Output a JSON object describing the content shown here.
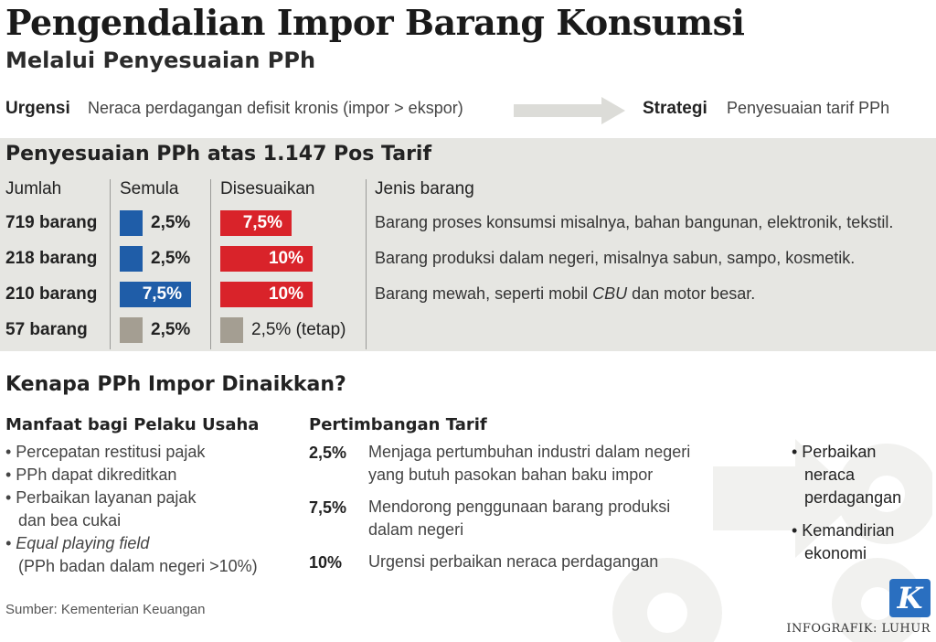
{
  "header": {
    "title": "Pengendalian Impor Barang Konsumsi",
    "subtitle": "Melalui Penyesuaian PPh"
  },
  "context": {
    "urgency_label": "Urgensi",
    "urgency_text": "Neraca perdagangan defisit kronis (impor > ekspor)",
    "strategy_label": "Strategi",
    "strategy_text": "Penyesuaian tarif PPh"
  },
  "tariff_table": {
    "title": "Penyesuaian PPh atas 1.147 Pos Tarif",
    "headers": [
      "Jumlah",
      "Semula",
      "Disesuaikan",
      "Jenis barang"
    ],
    "rows": [
      {
        "count": "719 barang",
        "original": "2,5%",
        "adjusted": "7,5%",
        "desc": "Barang proses konsumsi misalnya, bahan bangunan, elektronik, tekstil."
      },
      {
        "count": "218 barang",
        "original": "2,5%",
        "adjusted": "10%",
        "desc": "Barang produksi dalam negeri, misalnya sabun, sampo, kosmetik."
      },
      {
        "count": "210 barang",
        "original": "7,5%",
        "adjusted": "10%",
        "desc_prefix": "Barang mewah, seperti mobil ",
        "desc_italic": "CBU",
        "desc_suffix": " dan motor besar."
      },
      {
        "count": "57 barang",
        "original": "2,5%",
        "adjusted": "2,5% (tetap)",
        "desc": ""
      }
    ],
    "colors": {
      "blue": "#1f5da8",
      "red": "#d9232a",
      "gray": "#a49e92"
    }
  },
  "why": {
    "title": "Kenapa PPh Impor Dinaikkan?",
    "benefits_header": "Manfaat bagi Pelaku Usaha",
    "benefits": [
      "• Percepatan restitusi pajak",
      "• PPh dapat dikreditkan",
      "• Perbaikan layanan pajak",
      "dan bea cukai",
      "• Equal playing field",
      "(PPh badan dalam negeri >10%)"
    ],
    "considerations_header": "Pertimbangan Tarif",
    "considerations": [
      {
        "rate": "2,5%",
        "line1": "Menjaga pertumbuhan industri dalam negeri",
        "line2": "yang butuh pasokan bahan baku impor"
      },
      {
        "rate": "7,5%",
        "line1": "Mendorong penggunaan barang produksi",
        "line2": "dalam negeri"
      },
      {
        "rate": "10%",
        "line1": "Urgensi perbaikan neraca perdagangan",
        "line2": ""
      }
    ],
    "outcomes": [
      "• Perbaikan",
      "neraca",
      "perdagangan",
      "• Kemandirian",
      "ekonomi"
    ]
  },
  "footer": {
    "source": "Sumber: Kementerian Keuangan",
    "credit": "INFOGRAFIK: LUHUR",
    "logo_letter": "K"
  }
}
